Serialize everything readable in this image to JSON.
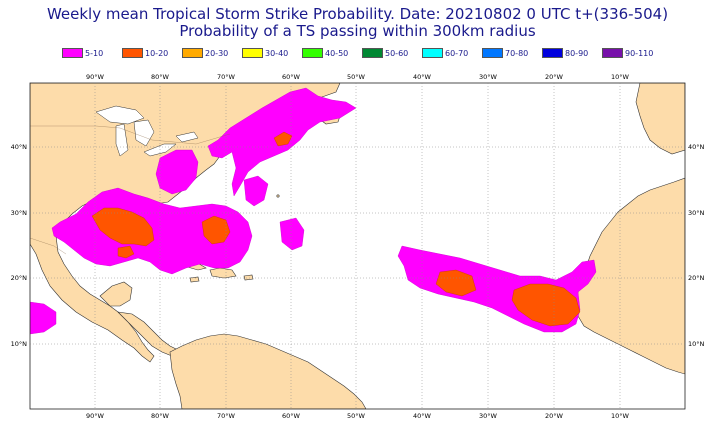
{
  "title_line1": "Weekly mean Tropical Storm Strike Probability. Date: 20210802  0 UTC   t+(336-504)",
  "title_line2": "Probability of a TS passing within  300km radius",
  "legend": [
    {
      "label": "5-10",
      "color": "#ff00ff"
    },
    {
      "label": "10-20",
      "color": "#ff5500"
    },
    {
      "label": "20-30",
      "color": "#ffaa00"
    },
    {
      "label": "30-40",
      "color": "#ffff00"
    },
    {
      "label": "40-50",
      "color": "#33ff00"
    },
    {
      "label": "50-60",
      "color": "#008833"
    },
    {
      "label": "60-70",
      "color": "#00ffff"
    },
    {
      "label": "70-80",
      "color": "#0077ff"
    },
    {
      "label": "80-90",
      "color": "#0000dd"
    },
    {
      "label": "90-110",
      "color": "#7711aa"
    }
  ],
  "lon_labels": [
    "90°W",
    "80°W",
    "70°W",
    "60°W",
    "50°W",
    "40°W",
    "30°W",
    "20°W",
    "10°W"
  ],
  "lat_labels": [
    "40°N",
    "30°N",
    "20°N",
    "10°N"
  ],
  "colors": {
    "land": "#fddcaa",
    "sea": "#ffffff",
    "coast": "#333333",
    "title": "#1a1a8c"
  }
}
